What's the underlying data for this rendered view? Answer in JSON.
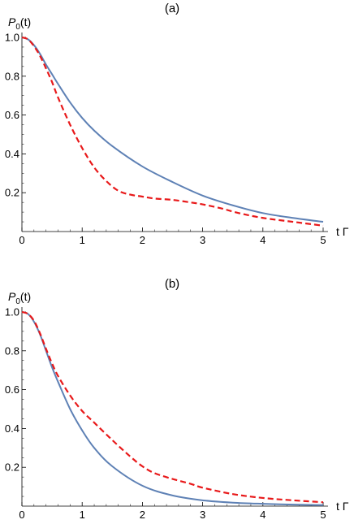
{
  "chart_data": [
    {
      "type": "line",
      "title": "(a)",
      "xlabel": "t Γ",
      "ylabel": "P0(t)",
      "ylabel_main": "P",
      "ylabel_sub": "0",
      "ylabel_rest": "(t)",
      "xlim": [
        0,
        5
      ],
      "ylim": [
        0,
        1.0
      ],
      "xticks": [
        0,
        1,
        2,
        3,
        4,
        5
      ],
      "xtick_labels": [
        "0",
        "1",
        "2",
        "3",
        "4",
        "5"
      ],
      "yticks": [
        0.2,
        0.4,
        0.6,
        0.8,
        1.0
      ],
      "ytick_labels": [
        "0.2",
        "0.4",
        "0.6",
        "0.8",
        "1.0"
      ],
      "grid": false,
      "series": [
        {
          "style": "solid",
          "color": "#5e81b5",
          "x": [
            0,
            0.1,
            0.2,
            0.3,
            0.4,
            0.5,
            0.6,
            0.8,
            1.0,
            1.2,
            1.5,
            2.0,
            2.5,
            3.0,
            3.5,
            4.0,
            4.5,
            5.0
          ],
          "y": [
            1.0,
            0.99,
            0.96,
            0.915,
            0.86,
            0.81,
            0.76,
            0.665,
            0.585,
            0.52,
            0.44,
            0.335,
            0.255,
            0.185,
            0.135,
            0.095,
            0.07,
            0.05
          ]
        },
        {
          "style": "dashed",
          "color": "#e8191a",
          "x": [
            0,
            0.1,
            0.2,
            0.3,
            0.4,
            0.5,
            0.6,
            0.8,
            1.0,
            1.2,
            1.4,
            1.6,
            1.8,
            2.0,
            2.2,
            2.5,
            2.8,
            3.0,
            3.3,
            3.6,
            4.0,
            4.5,
            5.0
          ],
          "y": [
            1.0,
            0.99,
            0.955,
            0.905,
            0.84,
            0.77,
            0.69,
            0.55,
            0.43,
            0.33,
            0.26,
            0.21,
            0.19,
            0.18,
            0.17,
            0.163,
            0.15,
            0.14,
            0.12,
            0.095,
            0.07,
            0.05,
            0.03
          ]
        }
      ]
    },
    {
      "type": "line",
      "title": "(b)",
      "xlabel": "t Γ",
      "ylabel": "P0(t)",
      "ylabel_main": "P",
      "ylabel_sub": "0",
      "ylabel_rest": "(t)",
      "xlim": [
        0,
        5
      ],
      "ylim": [
        0,
        1.0
      ],
      "xticks": [
        0,
        1,
        2,
        3,
        4,
        5
      ],
      "xtick_labels": [
        "0",
        "1",
        "2",
        "3",
        "4",
        "5"
      ],
      "yticks": [
        0.2,
        0.4,
        0.6,
        0.8,
        1.0
      ],
      "ytick_labels": [
        "0.2",
        "0.4",
        "0.6",
        "0.8",
        "1.0"
      ],
      "grid": false,
      "series": [
        {
          "style": "solid",
          "color": "#5e81b5",
          "x": [
            0,
            0.1,
            0.2,
            0.3,
            0.4,
            0.5,
            0.6,
            0.8,
            1.0,
            1.2,
            1.5,
            2.0,
            2.5,
            3.0,
            3.5,
            4.0,
            4.5,
            5.0
          ],
          "y": [
            1.0,
            0.99,
            0.95,
            0.885,
            0.8,
            0.715,
            0.64,
            0.5,
            0.39,
            0.3,
            0.205,
            0.105,
            0.055,
            0.03,
            0.018,
            0.012,
            0.008,
            0.005
          ]
        },
        {
          "style": "dashed",
          "color": "#e8191a",
          "x": [
            0,
            0.1,
            0.2,
            0.3,
            0.4,
            0.5,
            0.6,
            0.8,
            1.0,
            1.2,
            1.5,
            1.8,
            2.0,
            2.2,
            2.5,
            2.8,
            3.0,
            3.5,
            4.0,
            4.5,
            5.0
          ],
          "y": [
            1.0,
            0.99,
            0.955,
            0.89,
            0.81,
            0.735,
            0.67,
            0.57,
            0.49,
            0.43,
            0.34,
            0.255,
            0.205,
            0.17,
            0.14,
            0.115,
            0.095,
            0.062,
            0.042,
            0.03,
            0.02
          ]
        }
      ]
    }
  ]
}
